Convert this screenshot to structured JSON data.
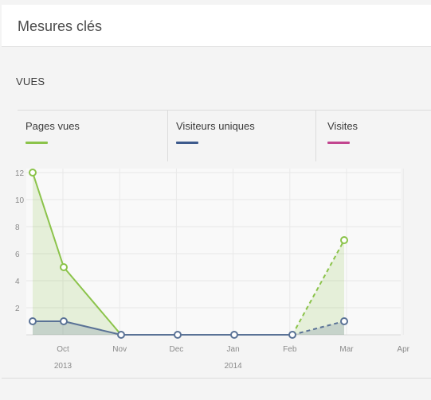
{
  "header": {
    "title": "Mesures clés"
  },
  "section": {
    "title": "VUES"
  },
  "tabs": [
    {
      "label": "Pages vues",
      "color": "#8bc34a"
    },
    {
      "label": "Visiteurs uniques",
      "color": "#3d5a8c"
    },
    {
      "label": "Visites",
      "color": "#c2458f"
    }
  ],
  "chart_data": {
    "type": "line",
    "x_ticks": [
      "Oct",
      "Nov",
      "Dec",
      "Jan",
      "Feb",
      "Mar",
      "Apr"
    ],
    "year_labels": [
      {
        "label": "2013",
        "at": "Oct"
      },
      {
        "label": "2014",
        "at": "Jan"
      }
    ],
    "y_ticks": [
      2,
      4,
      6,
      8,
      10,
      12
    ],
    "ylim": [
      0,
      12
    ],
    "x": [
      "Sep 2013",
      "Oct 2013",
      "Nov 2013",
      "Dec 2013",
      "Jan 2014",
      "Feb 2014",
      "Mar 2014"
    ],
    "series": [
      {
        "name": "Pages vues",
        "color": "#8bc34a",
        "values": [
          12,
          5,
          0,
          null,
          null,
          0,
          7
        ],
        "dashed_last_segment": true,
        "filled": true
      },
      {
        "name": "Visiteurs uniques",
        "color": "#5a7296",
        "values": [
          1,
          1,
          0,
          0,
          0,
          0,
          1
        ],
        "dashed_last_segment": true,
        "filled": true
      }
    ],
    "grid": true
  }
}
